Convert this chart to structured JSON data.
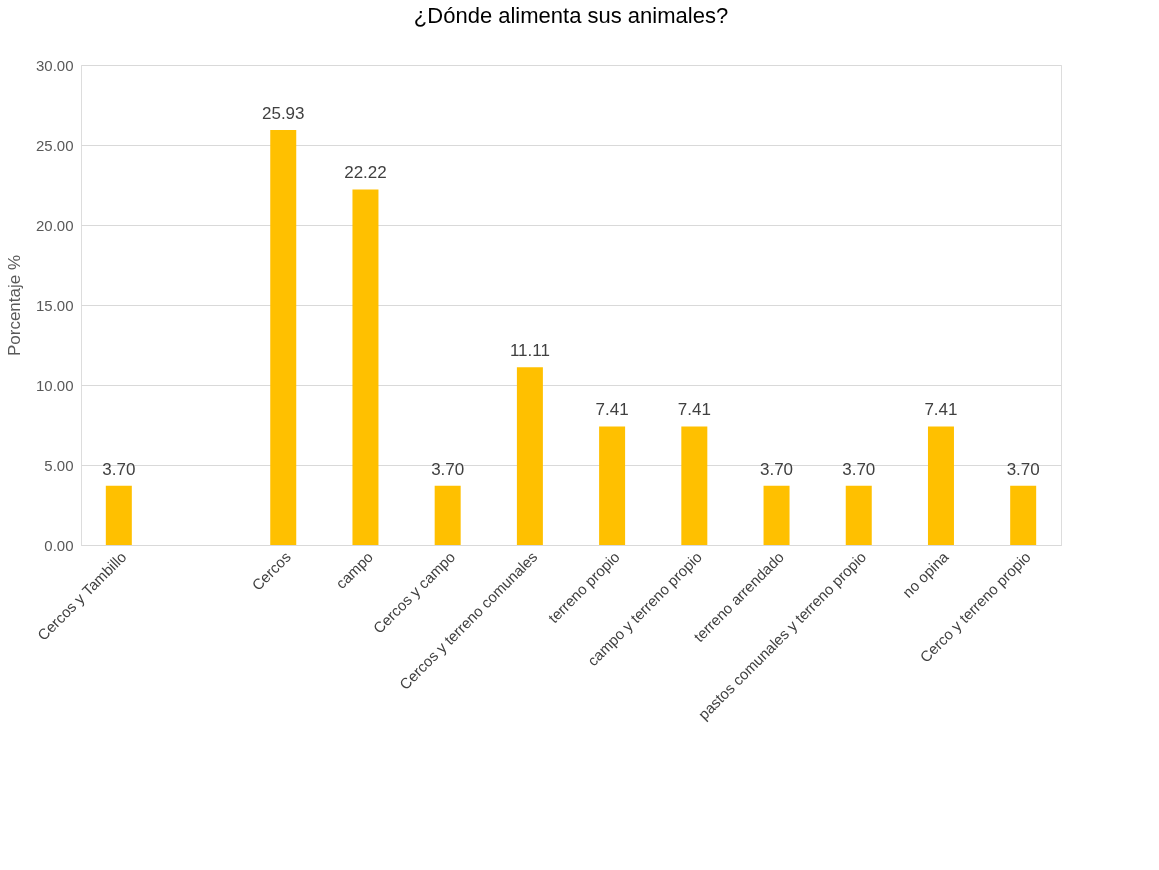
{
  "chart_data": {
    "type": "bar",
    "title": "¿Dónde alimenta sus animales?",
    "ylabel": "Porcentaje %",
    "categories": [
      "Cercos y Tambillo",
      null,
      "Cercos",
      "campo",
      "Cercos y campo",
      "Cercos y terreno comunales",
      "terreno propio",
      "campo y terreno propio",
      "terreno arrendado",
      "pastos comunales y terreno propio",
      "no opina",
      "Cerco y terreno propio"
    ],
    "values": [
      3.7,
      null,
      25.93,
      22.22,
      3.7,
      11.11,
      7.41,
      7.41,
      3.7,
      3.7,
      7.41,
      3.7
    ],
    "value_labels": [
      "3.70",
      null,
      "25.93",
      "22.22",
      "3.70",
      "11.11",
      "7.41",
      "7.41",
      "3.70",
      "3.70",
      "7.41",
      "3.70"
    ],
    "color": "#ffc000",
    "ylim": [
      0,
      30
    ],
    "yticks": [
      {
        "value": 0,
        "label": "0.00"
      },
      {
        "value": 5,
        "label": "5.00"
      },
      {
        "value": 10,
        "label": "10.00"
      },
      {
        "value": 15,
        "label": "15.00"
      },
      {
        "value": 20,
        "label": "20.00"
      },
      {
        "value": 25,
        "label": "25.00"
      },
      {
        "value": 30,
        "label": "30.00"
      }
    ],
    "grid": "y"
  }
}
